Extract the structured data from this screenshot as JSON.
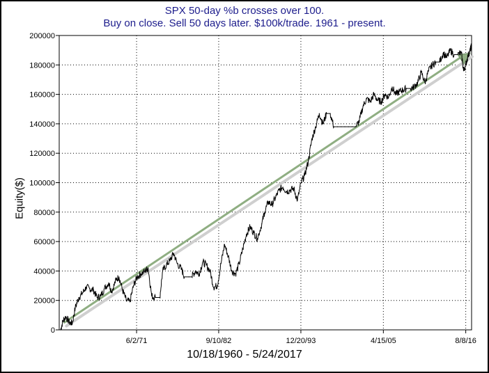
{
  "chart_data": {
    "type": "line",
    "title": "SPX 50-day %b crosses over 100.",
    "subtitle": "Buy on close. Sell 50 days later. $100k/trade. 1961 - present.",
    "xlabel": "10/18/1960 - 5/24/2017",
    "ylabel": "Equity($)",
    "ylim": [
      0,
      200000
    ],
    "xlim": [
      1960.8,
      2017.4
    ],
    "grid": true,
    "y_ticks": [
      "0",
      "20000",
      "40000",
      "60000",
      "80000",
      "100000",
      "120000",
      "140000",
      "160000",
      "180000",
      "200000"
    ],
    "y_tick_values": [
      0,
      20000,
      40000,
      60000,
      80000,
      100000,
      120000,
      140000,
      160000,
      180000,
      200000
    ],
    "x_ticks": [
      "6/2/71",
      "9/10/82",
      "12/20/93",
      "4/15/05",
      "8/8/16"
    ],
    "x_tick_values": [
      1971.42,
      1982.69,
      1993.97,
      2005.29,
      2016.6
    ],
    "series": [
      {
        "values": [
          [
            1961.0,
            0
          ],
          [
            1961.3,
            6000
          ],
          [
            1961.7,
            9000
          ],
          [
            1962.2,
            5000
          ],
          [
            1962.6,
            4500
          ],
          [
            1963.0,
            15000
          ],
          [
            1963.5,
            22000
          ],
          [
            1964.0,
            25000
          ],
          [
            1964.5,
            29000
          ],
          [
            1965.0,
            28000
          ],
          [
            1965.5,
            27000
          ],
          [
            1966.0,
            22000
          ],
          [
            1966.5,
            23000
          ],
          [
            1967.0,
            28000
          ],
          [
            1967.6,
            32000
          ],
          [
            1968.0,
            26000
          ],
          [
            1968.6,
            34000
          ],
          [
            1969.0,
            36000
          ],
          [
            1969.5,
            27000
          ],
          [
            1970.0,
            20000
          ],
          [
            1970.5,
            19000
          ],
          [
            1971.0,
            30000
          ],
          [
            1971.5,
            36000
          ],
          [
            1972.0,
            38000
          ],
          [
            1972.6,
            40000
          ],
          [
            1973.0,
            42000
          ],
          [
            1973.5,
            23000
          ],
          [
            1974.0,
            22000
          ],
          [
            1974.6,
            22000
          ],
          [
            1975.0,
            40000
          ],
          [
            1975.5,
            44000
          ],
          [
            1976.0,
            47000
          ],
          [
            1976.5,
            52000
          ],
          [
            1977.0,
            45000
          ],
          [
            1977.6,
            41000
          ],
          [
            1978.0,
            36000
          ],
          [
            1978.6,
            36000
          ],
          [
            1979.0,
            36000
          ],
          [
            1979.5,
            40000
          ],
          [
            1980.0,
            38000
          ],
          [
            1980.5,
            46000
          ],
          [
            1981.0,
            44000
          ],
          [
            1981.5,
            40000
          ],
          [
            1982.0,
            29000
          ],
          [
            1982.5,
            30000
          ],
          [
            1983.0,
            45000
          ],
          [
            1983.5,
            58000
          ],
          [
            1984.0,
            50000
          ],
          [
            1984.5,
            40000
          ],
          [
            1985.0,
            38000
          ],
          [
            1985.5,
            45000
          ],
          [
            1986.0,
            55000
          ],
          [
            1986.5,
            65000
          ],
          [
            1987.0,
            70000
          ],
          [
            1987.5,
            66000
          ],
          [
            1988.0,
            62000
          ],
          [
            1988.6,
            72000
          ],
          [
            1989.0,
            80000
          ],
          [
            1989.5,
            87000
          ],
          [
            1990.0,
            85000
          ],
          [
            1990.5,
            90000
          ],
          [
            1991.0,
            95000
          ],
          [
            1991.5,
            97000
          ],
          [
            1992.0,
            94000
          ],
          [
            1992.5,
            95000
          ],
          [
            1993.0,
            96000
          ],
          [
            1993.5,
            88000
          ],
          [
            1994.0,
            100000
          ],
          [
            1994.5,
            105000
          ],
          [
            1995.0,
            115000
          ],
          [
            1995.5,
            130000
          ],
          [
            1996.0,
            138000
          ],
          [
            1996.5,
            147000
          ],
          [
            1997.0,
            140000
          ],
          [
            1997.5,
            147000
          ],
          [
            1998.0,
            147000
          ],
          [
            1998.5,
            138000
          ],
          [
            1999.0,
            138000
          ],
          [
            1999.5,
            138000
          ],
          [
            2000.0,
            138000
          ],
          [
            2000.5,
            138000
          ],
          [
            2001.0,
            138000
          ],
          [
            2001.5,
            138000
          ],
          [
            2002.0,
            142000
          ],
          [
            2002.5,
            152000
          ],
          [
            2003.0,
            157000
          ],
          [
            2003.5,
            155000
          ],
          [
            2004.0,
            160000
          ],
          [
            2004.5,
            156000
          ],
          [
            2005.0,
            155000
          ],
          [
            2005.5,
            160000
          ],
          [
            2006.0,
            158000
          ],
          [
            2006.5,
            165000
          ],
          [
            2007.0,
            160000
          ],
          [
            2007.5,
            162000
          ],
          [
            2008.0,
            163000
          ],
          [
            2008.5,
            164000
          ],
          [
            2009.0,
            164000
          ],
          [
            2009.5,
            165000
          ],
          [
            2010.0,
            168000
          ],
          [
            2010.5,
            175000
          ],
          [
            2011.0,
            168000
          ],
          [
            2011.5,
            176000
          ],
          [
            2012.0,
            180000
          ],
          [
            2012.5,
            182000
          ],
          [
            2013.0,
            182000
          ],
          [
            2013.5,
            188000
          ],
          [
            2014.0,
            185000
          ],
          [
            2014.5,
            190000
          ],
          [
            2015.0,
            187000
          ],
          [
            2015.5,
            187000
          ],
          [
            2016.0,
            188000
          ],
          [
            2016.3,
            176000
          ],
          [
            2016.6,
            180000
          ],
          [
            2016.9,
            186000
          ],
          [
            2017.2,
            190000
          ],
          [
            2017.4,
            193000
          ]
        ]
      }
    ],
    "annotation_arrow": {
      "from": [
        1961.5,
        5000
      ],
      "to": [
        2017.2,
        188000
      ]
    },
    "colors": {
      "title": "#1c1c8c",
      "line": "#000000",
      "arrow": "#8fae82",
      "grid": "#000000"
    }
  }
}
